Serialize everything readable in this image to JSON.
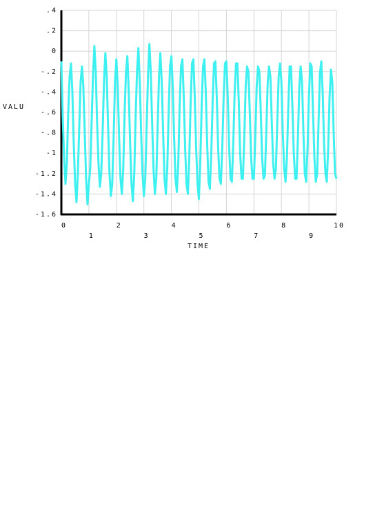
{
  "chart_data": {
    "type": "line",
    "x_label": "TIME",
    "y_label": "VALU",
    "xlim": [
      0,
      10
    ],
    "xticks": [
      0,
      1,
      2,
      3,
      4,
      5,
      6,
      7,
      8,
      9,
      10
    ],
    "ylim": [
      -1.6,
      0.4
    ],
    "yticks": [
      {
        "value": 0.4,
        "label": ".4"
      },
      {
        "value": 0.2,
        "label": ".2"
      },
      0,
      {
        "value": -0.2,
        "label": "-.2"
      },
      {
        "value": -0.4,
        "label": "-.4"
      },
      {
        "value": -0.6,
        "label": "-.6"
      },
      {
        "value": -0.8,
        "label": "-.8"
      },
      -1,
      {
        "value": -1.2,
        "label": "-1.2"
      },
      {
        "value": -1.4,
        "label": "-1.4"
      },
      {
        "value": -1.6,
        "label": "-1.6"
      }
    ],
    "grid": true,
    "x": [
      0,
      0.05,
      0.1,
      0.15,
      0.2,
      0.25,
      0.3,
      0.35,
      0.4,
      0.45,
      0.5,
      0.55,
      0.6,
      0.65,
      0.7,
      0.75,
      0.8,
      0.85,
      0.9,
      0.95,
      1,
      1.05,
      1.1,
      1.15,
      1.2,
      1.25,
      1.3,
      1.35,
      1.4,
      1.45,
      1.5,
      1.55,
      1.6,
      1.65,
      1.7,
      1.75,
      1.8,
      1.85,
      1.9,
      1.95,
      2,
      2.05,
      2.1,
      2.15,
      2.2,
      2.25,
      2.3,
      2.35,
      2.4,
      2.45,
      2.5,
      2.55,
      2.6,
      2.65,
      2.7,
      2.75,
      2.8,
      2.85,
      2.9,
      2.95,
      3,
      3.05,
      3.1,
      3.15,
      3.2,
      3.25,
      3.3,
      3.35,
      3.4,
      3.45,
      3.5,
      3.55,
      3.6,
      3.65,
      3.7,
      3.75,
      3.8,
      3.85,
      3.9,
      3.95,
      4,
      4.05,
      4.1,
      4.15,
      4.2,
      4.25,
      4.3,
      4.35,
      4.4,
      4.45,
      4.5,
      4.55,
      4.6,
      4.65,
      4.7,
      4.75,
      4.8,
      4.85,
      4.9,
      4.95,
      5,
      5.05,
      5.1,
      5.15,
      5.2,
      5.25,
      5.3,
      5.35,
      5.4,
      5.45,
      5.5,
      5.55,
      5.6,
      5.65,
      5.7,
      5.75,
      5.8,
      5.85,
      5.9,
      5.95,
      6,
      6.05,
      6.1,
      6.15,
      6.2,
      6.25,
      6.3,
      6.35,
      6.4,
      6.45,
      6.5,
      6.55,
      6.6,
      6.65,
      6.7,
      6.75,
      6.8,
      6.85,
      6.9,
      6.95,
      7,
      7.05,
      7.1,
      7.15,
      7.2,
      7.25,
      7.3,
      7.35,
      7.4,
      7.45,
      7.5,
      7.55,
      7.6,
      7.65,
      7.7,
      7.75,
      7.8,
      7.85,
      7.9,
      7.95,
      8,
      8.05,
      8.1,
      8.15,
      8.2,
      8.25,
      8.3,
      8.35,
      8.4,
      8.45,
      8.5,
      8.55,
      8.6,
      8.65,
      8.7,
      8.75,
      8.8,
      8.85,
      8.9,
      8.95,
      9,
      9.05,
      9.1,
      9.15,
      9.2,
      9.25,
      9.3,
      9.35,
      9.4,
      9.45,
      9.5,
      9.55,
      9.6,
      9.65,
      9.7,
      9.75,
      9.8,
      9.85,
      9.9,
      9.95,
      10
    ],
    "series": [
      {
        "color": "#3ff0f0",
        "values": [
          -0.1,
          -0.65,
          -1.05,
          -1.3,
          -1.1,
          -0.6,
          -0.25,
          -0.12,
          -0.4,
          -0.9,
          -1.3,
          -1.48,
          -1.2,
          -0.75,
          -0.3,
          -0.15,
          -0.35,
          -0.8,
          -1.25,
          -1.5,
          -1.3,
          -1.15,
          -0.7,
          -0.25,
          0.05,
          -0.2,
          -0.7,
          -1.1,
          -1.33,
          -1.2,
          -0.8,
          -0.3,
          -0.02,
          -0.25,
          -0.75,
          -1.2,
          -1.42,
          -1.3,
          -0.85,
          -0.3,
          -0.08,
          -0.35,
          -0.85,
          -1.25,
          -1.4,
          -1.15,
          -0.6,
          -0.2,
          -0.05,
          -0.4,
          -0.9,
          -1.3,
          -1.47,
          -1.2,
          -0.65,
          -0.2,
          0.03,
          -0.3,
          -0.8,
          -1.2,
          -1.42,
          -1.25,
          -0.75,
          -0.25,
          0.07,
          -0.2,
          -0.7,
          -1.15,
          -1.4,
          -1.25,
          -0.75,
          -0.25,
          -0.02,
          -0.3,
          -0.8,
          -1.25,
          -1.4,
          -1.15,
          -0.6,
          -0.15,
          -0.05,
          -0.35,
          -0.85,
          -1.25,
          -1.38,
          -1.1,
          -0.55,
          -0.15,
          -0.08,
          -0.45,
          -0.95,
          -1.3,
          -1.4,
          -1.05,
          -0.5,
          -0.12,
          -0.08,
          -0.45,
          -0.95,
          -1.3,
          -1.45,
          -1.1,
          -0.55,
          -0.15,
          -0.08,
          -0.4,
          -0.9,
          -1.28,
          -1.35,
          -1.0,
          -0.5,
          -0.12,
          -0.1,
          -0.45,
          -0.95,
          -1.25,
          -1.3,
          -0.95,
          -0.45,
          -0.12,
          -0.1,
          -0.45,
          -0.95,
          -1.25,
          -1.28,
          -0.9,
          -0.4,
          -0.12,
          -0.12,
          -0.5,
          -1.0,
          -1.25,
          -1.25,
          -0.85,
          -0.35,
          -0.15,
          -0.2,
          -0.6,
          -1.05,
          -1.25,
          -1.25,
          -0.85,
          -0.35,
          -0.15,
          -0.2,
          -0.6,
          -1.05,
          -1.25,
          -1.22,
          -0.8,
          -0.32,
          -0.15,
          -0.25,
          -0.7,
          -1.1,
          -1.25,
          -1.15,
          -0.7,
          -0.25,
          -0.12,
          -0.3,
          -0.8,
          -1.15,
          -1.28,
          -1.05,
          -0.55,
          -0.15,
          -0.15,
          -0.55,
          -1.0,
          -1.25,
          -1.25,
          -0.85,
          -0.35,
          -0.15,
          -0.3,
          -0.8,
          -1.2,
          -1.28,
          -0.95,
          -0.45,
          -0.12,
          -0.15,
          -0.6,
          -1.05,
          -1.28,
          -1.2,
          -0.7,
          -0.22,
          -0.1,
          -0.4,
          -0.9,
          -1.2,
          -1.28,
          -0.95,
          -0.45,
          -0.18,
          -0.3,
          -0.8,
          -1.2,
          -1.25
        ]
      }
    ]
  }
}
